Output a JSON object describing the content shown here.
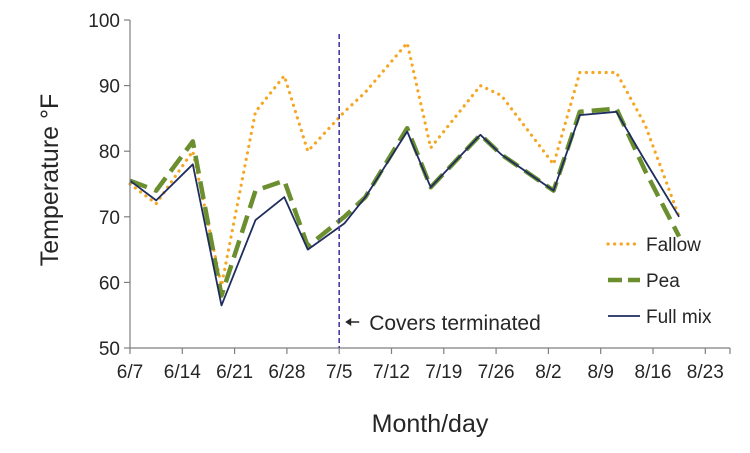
{
  "chart_data": {
    "type": "line",
    "title": "",
    "xlabel": "Month/day",
    "ylabel": "Temperature °F",
    "ylim": [
      50,
      100
    ],
    "yticks": [
      50,
      60,
      70,
      80,
      90,
      100
    ],
    "x_tick_labels": [
      "6/7",
      "6/14",
      "6/21",
      "6/28",
      "7/5",
      "7/12",
      "7/19",
      "7/26",
      "8/2",
      "8/9",
      "8/16",
      "8/23"
    ],
    "x_tick_index": [
      0,
      1,
      2,
      3,
      4,
      5,
      6,
      7,
      8,
      9,
      10,
      11
    ],
    "x_range_index": [
      0,
      11.5
    ],
    "grid": false,
    "legend_position": "right",
    "series": [
      {
        "name": "Fallow",
        "color": "#F5A623",
        "style": "dotted",
        "points": [
          [
            0,
            75.0
          ],
          [
            0.5,
            72.0
          ],
          [
            1.2,
            80.0
          ],
          [
            1.75,
            59.5
          ],
          [
            2.4,
            86.0
          ],
          [
            2.95,
            91.5
          ],
          [
            3.4,
            80.0
          ],
          [
            4.1,
            86.0
          ],
          [
            4.5,
            89.0
          ],
          [
            5.3,
            96.5
          ],
          [
            5.75,
            80.5
          ],
          [
            6.7,
            90.0
          ],
          [
            7.1,
            88.5
          ],
          [
            8.1,
            78.0
          ],
          [
            8.6,
            92.0
          ],
          [
            9.3,
            92.0
          ],
          [
            9.85,
            84.0
          ],
          [
            10.5,
            70.0
          ]
        ]
      },
      {
        "name": "Pea",
        "color": "#6B8E2F",
        "style": "dashed",
        "points": [
          [
            0,
            75.5
          ],
          [
            0.5,
            74.0
          ],
          [
            1.2,
            81.5
          ],
          [
            1.75,
            58.0
          ],
          [
            2.4,
            74.0
          ],
          [
            2.95,
            75.5
          ],
          [
            3.4,
            65.5
          ],
          [
            4.1,
            70.0
          ],
          [
            4.5,
            73.0
          ],
          [
            5.3,
            83.5
          ],
          [
            5.75,
            74.5
          ],
          [
            6.7,
            82.5
          ],
          [
            7.1,
            79.5
          ],
          [
            8.1,
            74.0
          ],
          [
            8.6,
            86.0
          ],
          [
            9.3,
            86.5
          ],
          [
            9.85,
            77.0
          ],
          [
            10.5,
            67.0
          ]
        ]
      },
      {
        "name": "Full mix",
        "color": "#1F2D5E",
        "style": "solid",
        "points": [
          [
            0,
            75.5
          ],
          [
            0.5,
            72.5
          ],
          [
            1.2,
            78.0
          ],
          [
            1.75,
            56.5
          ],
          [
            2.4,
            69.5
          ],
          [
            2.95,
            73.0
          ],
          [
            3.4,
            65.0
          ],
          [
            4.1,
            69.0
          ],
          [
            4.5,
            73.0
          ],
          [
            5.3,
            83.0
          ],
          [
            5.75,
            74.5
          ],
          [
            6.7,
            82.5
          ],
          [
            7.1,
            79.5
          ],
          [
            8.1,
            74.0
          ],
          [
            8.6,
            85.5
          ],
          [
            9.3,
            86.0
          ],
          [
            9.85,
            78.5
          ],
          [
            10.5,
            70.0
          ]
        ]
      }
    ],
    "annotation": {
      "text": "Covers terminated",
      "x_index": 4,
      "line_color": "#4B3B9C",
      "line_style": "dashed"
    }
  }
}
